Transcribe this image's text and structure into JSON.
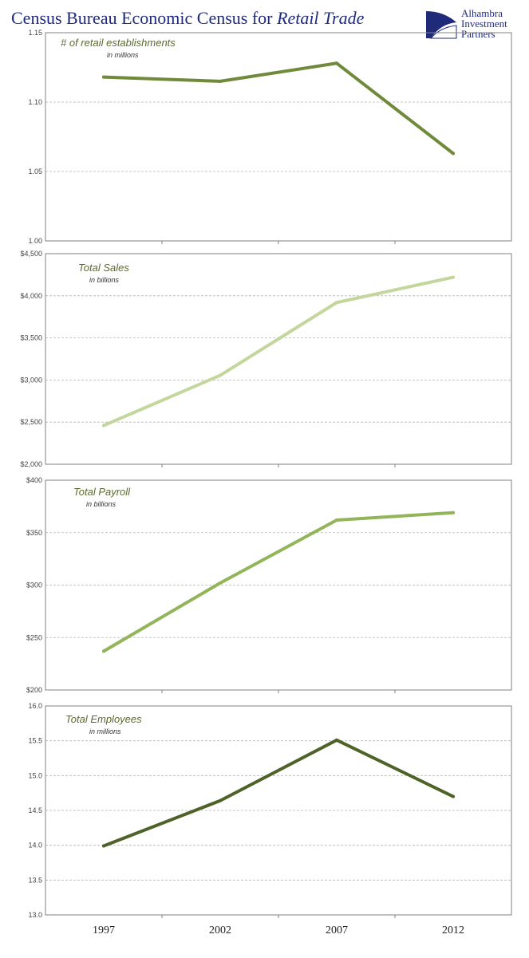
{
  "title": {
    "prefix": "Census Bureau Economic Census for",
    "emphasis": "Retail Trade"
  },
  "logo": {
    "icon": "alhambra-logo-icon",
    "line1": "Alhambra",
    "line2": "Investment",
    "line3": "Partners",
    "color": "#1f2a7a"
  },
  "chart_data": [
    {
      "type": "line",
      "title": "# of retail establishments",
      "subtitle": "in millions",
      "x": [
        "1997",
        "2002",
        "2007",
        "2012"
      ],
      "series": [
        {
          "values": [
            1.118,
            1.115,
            1.128,
            1.063
          ],
          "color": "#6f8a3a"
        }
      ],
      "ylim": [
        1.0,
        1.15
      ],
      "yticks": [
        1.0,
        1.05,
        1.1,
        1.15
      ],
      "ytick_labels": [
        "1.00",
        "1.05",
        "1.10",
        "1.15"
      ],
      "grid": true
    },
    {
      "type": "line",
      "title": "Total Sales",
      "subtitle": "in billions",
      "x": [
        "1997",
        "2002",
        "2007",
        "2012"
      ],
      "series": [
        {
          "values": [
            2460,
            3055,
            3920,
            4220
          ],
          "color": "#c3d69b"
        }
      ],
      "ylim": [
        2000,
        4500
      ],
      "yticks": [
        2000,
        2500,
        3000,
        3500,
        4000,
        4500
      ],
      "ytick_labels": [
        "$2,000",
        "$2,500",
        "$3,000",
        "$3,500",
        "$4,000",
        "$4,500"
      ],
      "grid": true
    },
    {
      "type": "line",
      "title": "Total Payroll",
      "subtitle": "in billions",
      "x": [
        "1997",
        "2002",
        "2007",
        "2012"
      ],
      "series": [
        {
          "values": [
            237,
            302,
            362,
            369
          ],
          "color": "#93b55a"
        }
      ],
      "ylim": [
        200,
        400
      ],
      "yticks": [
        200,
        250,
        300,
        350,
        400
      ],
      "ytick_labels": [
        "$200",
        "$250",
        "$300",
        "$350",
        "$400"
      ],
      "grid": true
    },
    {
      "type": "line",
      "title": "Total Employees",
      "subtitle": "in millions",
      "x": [
        "1997",
        "2002",
        "2007",
        "2012"
      ],
      "series": [
        {
          "values": [
            13.99,
            14.64,
            15.51,
            14.7
          ],
          "color": "#4f6228"
        }
      ],
      "ylim": [
        13.0,
        16.0
      ],
      "yticks": [
        13.0,
        13.5,
        14.0,
        14.5,
        15.0,
        15.5,
        16.0
      ],
      "ytick_labels": [
        "13.0",
        "13.5",
        "14.0",
        "14.5",
        "15.0",
        "15.5",
        "16.0"
      ],
      "grid": true
    }
  ],
  "x_axis_labels": [
    "1997",
    "2002",
    "2007",
    "2012"
  ]
}
